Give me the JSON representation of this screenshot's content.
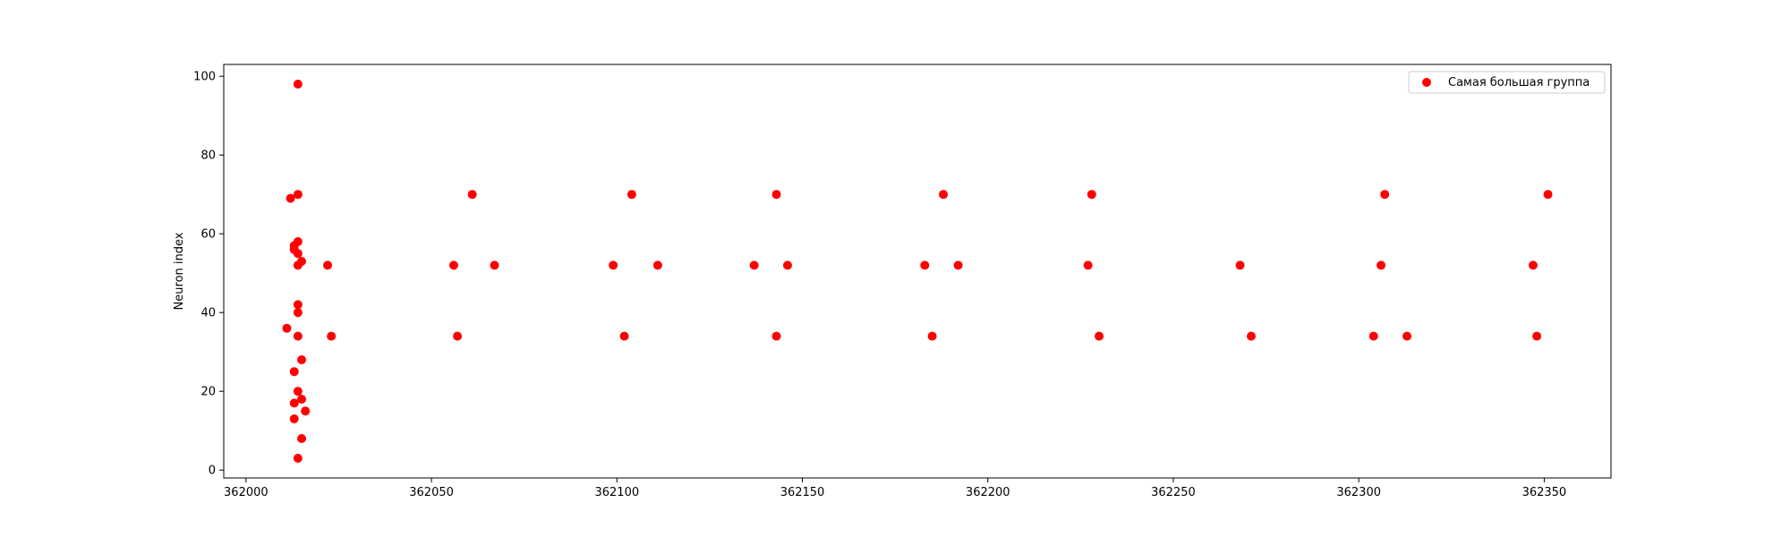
{
  "chart_data": {
    "type": "scatter",
    "title": "",
    "xlabel": "",
    "ylabel": "Neuron index",
    "xlim": [
      361994,
      362368
    ],
    "ylim": [
      -2,
      103
    ],
    "xticks": [
      362000,
      362050,
      362100,
      362150,
      362200,
      362250,
      362300,
      362350
    ],
    "yticks": [
      0,
      20,
      40,
      60,
      80,
      100
    ],
    "grid": false,
    "legend_position": "top-right",
    "series": [
      {
        "name": "Самая большая группа",
        "color": "#ff0000",
        "points": [
          [
            362014,
            98
          ],
          [
            362012,
            69
          ],
          [
            362014,
            70
          ],
          [
            362013,
            57
          ],
          [
            362014,
            58
          ],
          [
            362013,
            56
          ],
          [
            362014,
            55
          ],
          [
            362014,
            52
          ],
          [
            362015,
            53
          ],
          [
            362014,
            42
          ],
          [
            362014,
            40
          ],
          [
            362011,
            36
          ],
          [
            362014,
            34
          ],
          [
            362015,
            28
          ],
          [
            362013,
            25
          ],
          [
            362014,
            20
          ],
          [
            362013,
            17
          ],
          [
            362015,
            18
          ],
          [
            362016,
            15
          ],
          [
            362013,
            13
          ],
          [
            362015,
            8
          ],
          [
            362014,
            3
          ],
          [
            362022,
            52
          ],
          [
            362023,
            34
          ],
          [
            362056,
            52
          ],
          [
            362057,
            34
          ],
          [
            362061,
            70
          ],
          [
            362067,
            52
          ],
          [
            362099,
            52
          ],
          [
            362102,
            34
          ],
          [
            362104,
            70
          ],
          [
            362111,
            52
          ],
          [
            362137,
            52
          ],
          [
            362143,
            34
          ],
          [
            362143,
            70
          ],
          [
            362146,
            52
          ],
          [
            362183,
            52
          ],
          [
            362185,
            34
          ],
          [
            362188,
            70
          ],
          [
            362192,
            52
          ],
          [
            362227,
            52
          ],
          [
            362228,
            70
          ],
          [
            362230,
            34
          ],
          [
            362268,
            52
          ],
          [
            362271,
            34
          ],
          [
            362304,
            34
          ],
          [
            362306,
            52
          ],
          [
            362307,
            70
          ],
          [
            362313,
            34
          ],
          [
            362347,
            52
          ],
          [
            362348,
            34
          ],
          [
            362351,
            70
          ]
        ]
      }
    ]
  }
}
